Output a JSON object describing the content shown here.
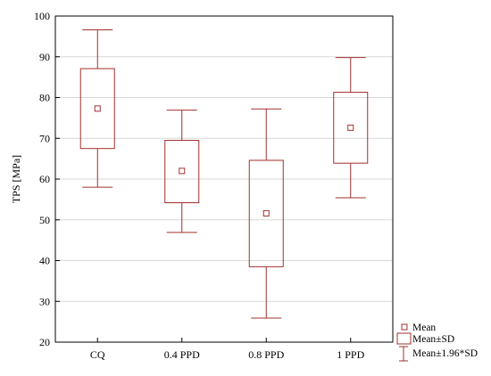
{
  "chart_data": {
    "type": "box",
    "title": "",
    "xlabel": "",
    "ylabel": "TPS [MPa]",
    "ylim": [
      20,
      100
    ],
    "yticks": [
      20,
      30,
      40,
      50,
      60,
      70,
      80,
      90,
      100
    ],
    "grid": true,
    "legend_position": "bottom-right",
    "categories": [
      "CQ",
      "0.4 PPD",
      "0.8 PPD",
      "1 PPD"
    ],
    "series": [
      {
        "mean": [
          77.3,
          62.0,
          51.6,
          72.6
        ],
        "box_low": [
          67.5,
          54.2,
          38.5,
          63.9
        ],
        "box_high": [
          87.1,
          69.5,
          64.6,
          81.3
        ],
        "whisker_low": [
          58.0,
          46.9,
          25.9,
          55.4
        ],
        "whisker_high": [
          96.6,
          76.9,
          77.2,
          89.8
        ]
      }
    ],
    "legend": [
      "Mean",
      "Mean±SD",
      "Mean±1.96*SD"
    ],
    "colors": {
      "marks": "#a0302e",
      "frame": "#000000",
      "grid": "#d8d8d8"
    }
  }
}
